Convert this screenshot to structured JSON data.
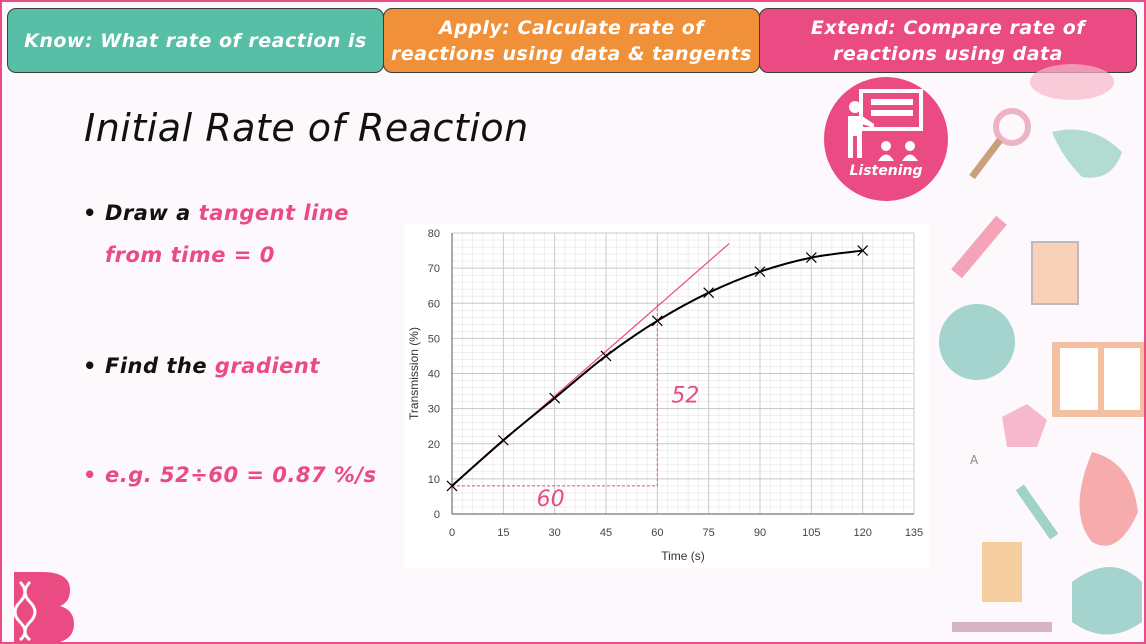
{
  "objectives": {
    "know": "Know: What rate of reaction is",
    "apply_line1": "Apply: Calculate rate of",
    "apply_line2": "reactions using data & tangents",
    "extend_line1": "Extend: Compare rate of",
    "extend_line2": "reactions using data"
  },
  "title": "Initial Rate of Reaction",
  "listening_label": "Listening",
  "bullets": {
    "b1_pre": "Draw a ",
    "b1_pink": "tangent line from time = 0",
    "b2_pre": "Find the ",
    "b2_pink": "gradient",
    "b3": "e.g. 52÷60 = 0.87 %/s"
  },
  "colors": {
    "know": "#57bfa5",
    "apply": "#f0913a",
    "extend": "#e94b82",
    "accent": "#e94b82"
  },
  "chart_data": {
    "type": "scatter",
    "xlabel": "Time (s)",
    "ylabel": "Transmission (%)",
    "xlim": [
      0,
      135
    ],
    "ylim": [
      0,
      80
    ],
    "xticks": [
      0,
      15,
      30,
      45,
      60,
      75,
      90,
      105,
      120,
      135
    ],
    "yticks": [
      0,
      10,
      20,
      30,
      40,
      50,
      60,
      70,
      80
    ],
    "grid": true,
    "series": [
      {
        "x": [
          0,
          15,
          30,
          45,
          60,
          75,
          90,
          105,
          120
        ],
        "y": [
          8,
          21,
          33,
          45,
          55,
          63,
          69,
          73,
          75
        ]
      }
    ],
    "tangent": {
      "x": [
        0,
        81
      ],
      "y": [
        8,
        77
      ]
    },
    "triangle": {
      "x0": 0,
      "y0": 8,
      "x1": 60,
      "y1": 60
    },
    "annotations": {
      "rise": "52",
      "run": "60"
    }
  }
}
